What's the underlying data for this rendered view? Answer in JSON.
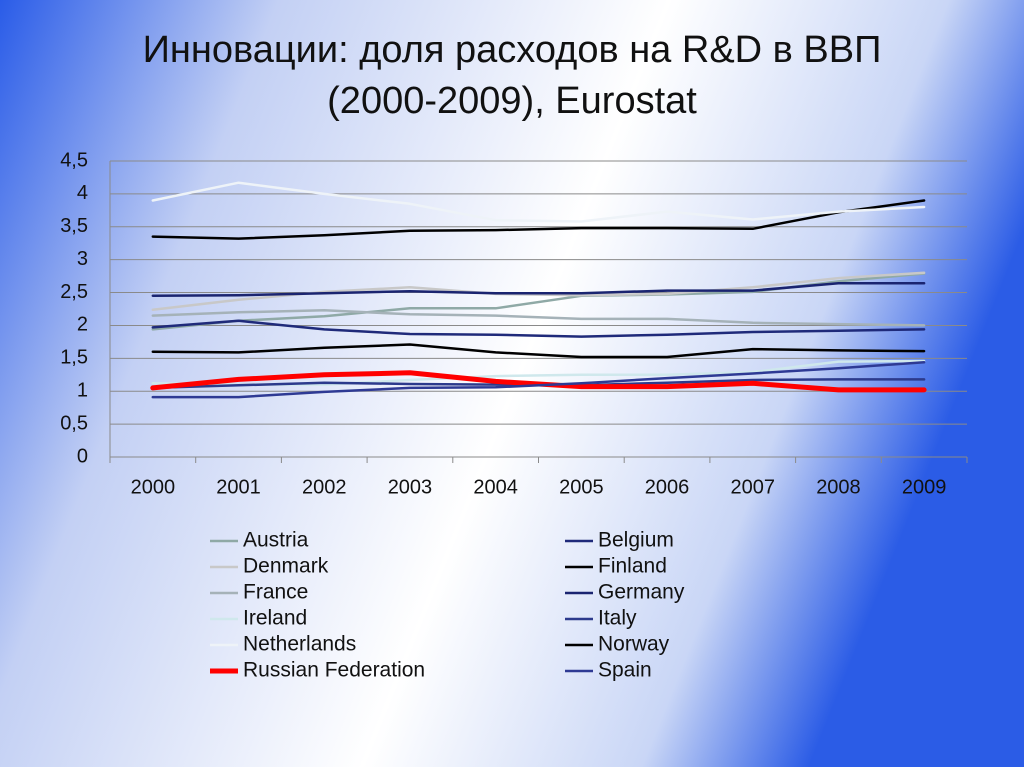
{
  "chart_data": {
    "type": "line",
    "title": "Инновации: доля расходов на R&D в ВВП",
    "subtitle": "(2000-2009), Eurostat",
    "categories": [
      "2000",
      "2001",
      "2002",
      "2003",
      "2004",
      "2005",
      "2006",
      "2007",
      "2008",
      "2009"
    ],
    "ylim": [
      0,
      4.5
    ],
    "yticks": [
      0,
      {
        "value": 0.5,
        "label": "0,5"
      },
      1,
      {
        "value": 1.5,
        "label": "1,5"
      },
      2,
      {
        "value": 2.5,
        "label": "2,5"
      },
      3,
      {
        "value": 3.5,
        "label": "3,5"
      },
      4,
      {
        "value": 4.5,
        "label": "4,5"
      }
    ],
    "grid": true,
    "series": [
      {
        "name": "Austria",
        "color": "#8fa9a6",
        "values": [
          1.94,
          2.07,
          2.14,
          2.26,
          2.26,
          2.45,
          2.47,
          2.51,
          2.67,
          2.79
        ]
      },
      {
        "name": "Belgium",
        "color": "#1f2a7a",
        "values": [
          1.97,
          2.07,
          1.94,
          1.87,
          1.86,
          1.83,
          1.86,
          1.9,
          1.92,
          1.94
        ]
      },
      {
        "name": "Denmark",
        "color": "#c8c8c8",
        "values": [
          2.24,
          2.39,
          2.51,
          2.58,
          2.48,
          2.46,
          2.48,
          2.58,
          2.72,
          2.8
        ]
      },
      {
        "name": "Finland",
        "color": "#000000",
        "values": [
          3.35,
          3.32,
          3.37,
          3.44,
          3.45,
          3.48,
          3.48,
          3.47,
          3.72,
          3.9
        ]
      },
      {
        "name": "France",
        "color": "#a5b2b8",
        "values": [
          2.15,
          2.2,
          2.23,
          2.17,
          2.15,
          2.1,
          2.1,
          2.04,
          2.02,
          2.0
        ]
      },
      {
        "name": "Germany",
        "color": "#1a2470",
        "values": [
          2.45,
          2.46,
          2.49,
          2.52,
          2.49,
          2.49,
          2.53,
          2.53,
          2.64,
          2.64
        ]
      },
      {
        "name": "Ireland",
        "color": "#cfe8ec",
        "values": [
          1.12,
          1.1,
          1.1,
          1.17,
          1.23,
          1.25,
          1.25,
          1.29,
          1.45,
          1.46
        ]
      },
      {
        "name": "Italy",
        "color": "#2c3a8c",
        "values": [
          1.05,
          1.09,
          1.13,
          1.11,
          1.1,
          1.09,
          1.13,
          1.17,
          1.18,
          1.18
        ]
      },
      {
        "name": "Netherlands",
        "color": "#eef3f8",
        "values": [
          3.9,
          4.17,
          4.0,
          3.85,
          3.6,
          3.58,
          3.73,
          3.61,
          3.73,
          3.8
        ]
      },
      {
        "name": "Norway",
        "color": "#000000",
        "values": [
          1.6,
          1.59,
          1.66,
          1.71,
          1.59,
          1.52,
          1.52,
          1.64,
          1.62,
          1.61
        ]
      },
      {
        "name": "Russian Federation",
        "color": "#ff0000",
        "values": [
          1.05,
          1.18,
          1.25,
          1.28,
          1.15,
          1.07,
          1.07,
          1.12,
          1.02,
          1.02
        ]
      },
      {
        "name": "Spain",
        "color": "#2e3a94",
        "values": [
          0.91,
          0.91,
          0.99,
          1.05,
          1.06,
          1.12,
          1.2,
          1.27,
          1.35,
          1.44
        ]
      }
    ]
  }
}
